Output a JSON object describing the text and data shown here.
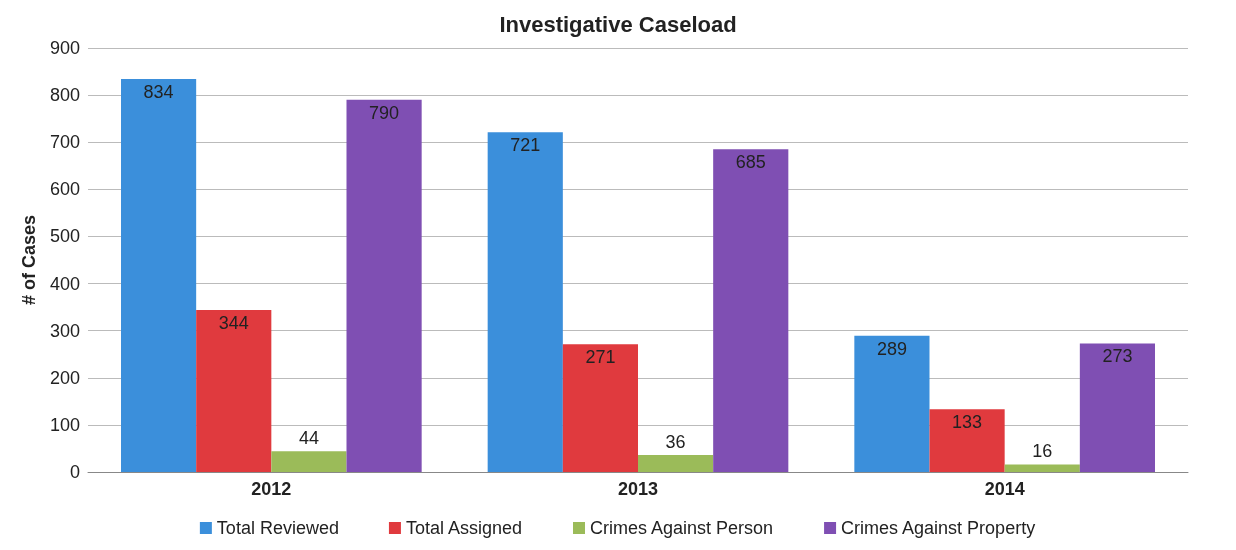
{
  "chart_data": {
    "type": "bar",
    "title": "Investigative Caseload",
    "ylabel": "# of Cases",
    "categories": [
      "2012",
      "2013",
      "2014"
    ],
    "series": [
      {
        "name": "Total Reviewed",
        "color": "#3b8fdb",
        "values": [
          834,
          721,
          289
        ]
      },
      {
        "name": "Total Assigned",
        "color": "#e03a3e",
        "values": [
          344,
          271,
          133
        ]
      },
      {
        "name": "Crimes Against Person",
        "color": "#9bbb59",
        "values": [
          44,
          36,
          16
        ]
      },
      {
        "name": "Crimes Against Property",
        "color": "#7f4fb3",
        "values": [
          790,
          685,
          273
        ]
      }
    ],
    "ylim": [
      0,
      900
    ],
    "yticks": [
      0,
      100,
      200,
      300,
      400,
      500,
      600,
      700,
      800,
      900
    ],
    "grid": "y",
    "legend": "bottom",
    "data_labels": true
  }
}
